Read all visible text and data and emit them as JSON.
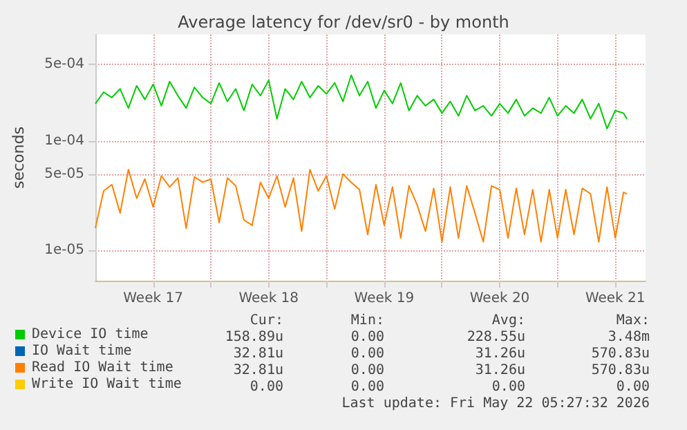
{
  "chart_data": {
    "type": "line",
    "title": "Average latency for /dev/sr0 - by month",
    "ylabel": "seconds",
    "log": "y",
    "grid": true,
    "legend": "bottom",
    "marker": "none",
    "xlim": [
      "2026-04-20T00:00",
      "2026-05-23T08:00"
    ],
    "xticks": [
      {
        "value": "2026-04-23T12:00",
        "label": "Week 17"
      },
      {
        "value": "2026-04-27T00:00",
        "label": null
      },
      {
        "value": "2026-04-30T12:00",
        "label": "Week 18"
      },
      {
        "value": "2026-05-04T00:00",
        "label": null
      },
      {
        "value": "2026-05-07T12:00",
        "label": "Week 19"
      },
      {
        "value": "2026-05-11T00:00",
        "label": null
      },
      {
        "value": "2026-05-14T12:00",
        "label": "Week 20"
      },
      {
        "value": "2026-05-18T00:00",
        "label": null
      },
      {
        "value": "2026-05-21T12:00",
        "label": "Week 21"
      }
    ],
    "ylim": [
      5.3e-06,
      0.00094
    ],
    "yticks": [
      {
        "value": 1e-05,
        "label": "1e-05"
      },
      {
        "value": 5e-05,
        "label": "5e-05"
      },
      {
        "value": 0.0001,
        "label": "1e-04"
      },
      {
        "value": 0.0005,
        "label": "5e-04"
      }
    ],
    "x": [
      "2026-04-20T00:00",
      "2026-04-20T12:00",
      "2026-04-21T00:00",
      "2026-04-21T12:00",
      "2026-04-22T00:00",
      "2026-04-22T12:00",
      "2026-04-23T00:00",
      "2026-04-23T12:00",
      "2026-04-24T00:00",
      "2026-04-24T12:00",
      "2026-04-25T00:00",
      "2026-04-25T12:00",
      "2026-04-26T00:00",
      "2026-04-26T12:00",
      "2026-04-27T00:00",
      "2026-04-27T12:00",
      "2026-04-28T00:00",
      "2026-04-28T12:00",
      "2026-04-29T00:00",
      "2026-04-29T12:00",
      "2026-04-30T00:00",
      "2026-04-30T12:00",
      "2026-05-01T00:00",
      "2026-05-01T12:00",
      "2026-05-02T00:00",
      "2026-05-02T12:00",
      "2026-05-03T00:00",
      "2026-05-03T12:00",
      "2026-05-04T00:00",
      "2026-05-04T12:00",
      "2026-05-05T00:00",
      "2026-05-05T12:00",
      "2026-05-06T00:00",
      "2026-05-06T12:00",
      "2026-05-07T00:00",
      "2026-05-07T12:00",
      "2026-05-08T00:00",
      "2026-05-08T12:00",
      "2026-05-09T00:00",
      "2026-05-09T12:00",
      "2026-05-10T00:00",
      "2026-05-10T12:00",
      "2026-05-11T00:00",
      "2026-05-11T12:00",
      "2026-05-12T00:00",
      "2026-05-12T12:00",
      "2026-05-13T00:00",
      "2026-05-13T12:00",
      "2026-05-14T00:00",
      "2026-05-14T12:00",
      "2026-05-15T00:00",
      "2026-05-15T12:00",
      "2026-05-16T00:00",
      "2026-05-16T12:00",
      "2026-05-17T00:00",
      "2026-05-17T12:00",
      "2026-05-18T00:00",
      "2026-05-18T12:00",
      "2026-05-19T00:00",
      "2026-05-19T12:00",
      "2026-05-20T00:00",
      "2026-05-20T12:00",
      "2026-05-21T00:00",
      "2026-05-21T12:00",
      "2026-05-22T00:00",
      "2026-05-22T05:00"
    ],
    "series": [
      {
        "name": "Device IO time",
        "color": "#00cc00",
        "values": [
          0.00022,
          0.00028,
          0.00025,
          0.0003,
          0.0002,
          0.00032,
          0.00024,
          0.00033,
          0.00021,
          0.00035,
          0.00026,
          0.0002,
          0.00031,
          0.00025,
          0.00022,
          0.00034,
          0.00023,
          0.0003,
          0.00019,
          0.00033,
          0.00026,
          0.00036,
          0.00016,
          0.0003,
          0.00024,
          0.00035,
          0.00025,
          0.00032,
          0.00027,
          0.00034,
          0.00023,
          0.0004,
          0.00026,
          0.00035,
          0.0002,
          0.00029,
          0.00022,
          0.00034,
          0.00019,
          0.00026,
          0.00021,
          0.00024,
          0.00018,
          0.00023,
          0.00017,
          0.00026,
          0.00019,
          0.00021,
          0.00017,
          0.00022,
          0.00018,
          0.00024,
          0.00017,
          0.0002,
          0.00018,
          0.00025,
          0.00017,
          0.00021,
          0.00018,
          0.00024,
          0.00016,
          0.00022,
          0.00013,
          0.00019,
          0.00018,
          0.000159
        ]
      },
      {
        "name": "IO Wait time",
        "color": "#0066b3",
        "values": [
          null,
          null,
          null,
          null,
          null,
          null,
          null,
          null,
          null,
          null,
          null,
          null,
          null,
          null,
          null,
          null,
          null,
          null,
          null,
          null,
          null,
          null,
          null,
          null,
          null,
          null,
          null,
          null,
          null,
          null,
          null,
          null,
          null,
          null,
          null,
          null,
          null,
          null,
          null,
          null,
          null,
          null,
          null,
          null,
          null,
          null,
          null,
          null,
          null,
          null,
          null,
          null,
          null,
          null,
          null,
          null,
          null,
          null,
          null,
          null,
          null,
          null,
          null,
          null,
          null,
          null
        ]
      },
      {
        "name": "Read IO Wait time",
        "color": "#ff8000",
        "values": [
          1.6e-05,
          3.5e-05,
          4e-05,
          2.2e-05,
          5.5e-05,
          3e-05,
          4.5e-05,
          2.5e-05,
          4.8e-05,
          3.8e-05,
          4.6e-05,
          1.6e-05,
          4.7e-05,
          4.2e-05,
          4.5e-05,
          1.8e-05,
          4.6e-05,
          3.9e-05,
          1.9e-05,
          1.7e-05,
          4.2e-05,
          3e-05,
          4.8e-05,
          2.5e-05,
          4.6e-05,
          1.5e-05,
          5.5e-05,
          3.5e-05,
          4.8e-05,
          2.4e-05,
          5e-05,
          4.2e-05,
          3.6e-05,
          1.4e-05,
          4e-05,
          1.7e-05,
          3.8e-05,
          1.3e-05,
          3.9e-05,
          2.6e-05,
          1.5e-05,
          3.7e-05,
          1.2e-05,
          3.8e-05,
          1.3e-05,
          3.9e-05,
          2.2e-05,
          1.2e-05,
          3.9e-05,
          3.6e-05,
          1.3e-05,
          3.7e-05,
          1.4e-05,
          3.6e-05,
          1.2e-05,
          3.6e-05,
          1.3e-05,
          3.6e-05,
          1.4e-05,
          3.7e-05,
          3.3e-05,
          1.2e-05,
          3.8e-05,
          1.3e-05,
          3.4e-05,
          3.28e-05
        ]
      },
      {
        "name": "Write IO Wait time",
        "color": "#ffcc00",
        "values": [
          null,
          null,
          null,
          null,
          null,
          null,
          null,
          null,
          null,
          null,
          null,
          null,
          null,
          null,
          null,
          null,
          null,
          null,
          null,
          null,
          null,
          null,
          null,
          null,
          null,
          null,
          null,
          null,
          null,
          null,
          null,
          null,
          null,
          null,
          null,
          null,
          null,
          null,
          null,
          null,
          null,
          null,
          null,
          null,
          null,
          null,
          null,
          null,
          null,
          null,
          null,
          null,
          null,
          null,
          null,
          null,
          null,
          null,
          null,
          null,
          null,
          null,
          null,
          null,
          null,
          null
        ]
      }
    ],
    "annotations": [
      "Cur:",
      "Min:",
      "Avg:",
      "Max:",
      "158.89u",
      "0.00",
      "228.55u",
      "3.48m",
      "32.81u",
      "0.00",
      "31.26u",
      "570.83u",
      "32.81u",
      "0.00",
      "31.26u",
      "570.83u",
      "0.00",
      "0.00",
      "0.00",
      "0.00",
      "Last update: Fri May 22 05:27:32 2026"
    ]
  }
}
